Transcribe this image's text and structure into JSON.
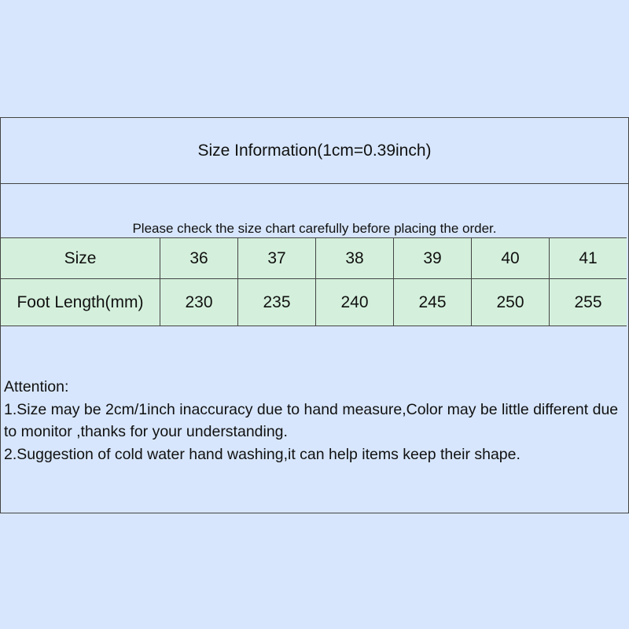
{
  "title": "Size Information(1cm=0.39inch)",
  "notice": "Please check the size chart carefully before placing the order.",
  "table": {
    "rows": [
      {
        "label": "Size",
        "values": [
          "36",
          "37",
          "38",
          "39",
          "40",
          "41"
        ]
      },
      {
        "label": "Foot Length(mm)",
        "values": [
          "230",
          "235",
          "240",
          "245",
          "250",
          "255"
        ]
      }
    ]
  },
  "notes": {
    "heading": "Attention:",
    "lines": [
      "1.Size may be 2cm/1inch inaccuracy due to hand measure,Color may be little different due to monitor ,thanks for your understanding.",
      "2.Suggestion of cold water hand washing,it can help items keep their shape."
    ]
  },
  "colors": {
    "background": "#d7e6fc",
    "table_fill": "#d4f0dc",
    "border": "#444444"
  }
}
